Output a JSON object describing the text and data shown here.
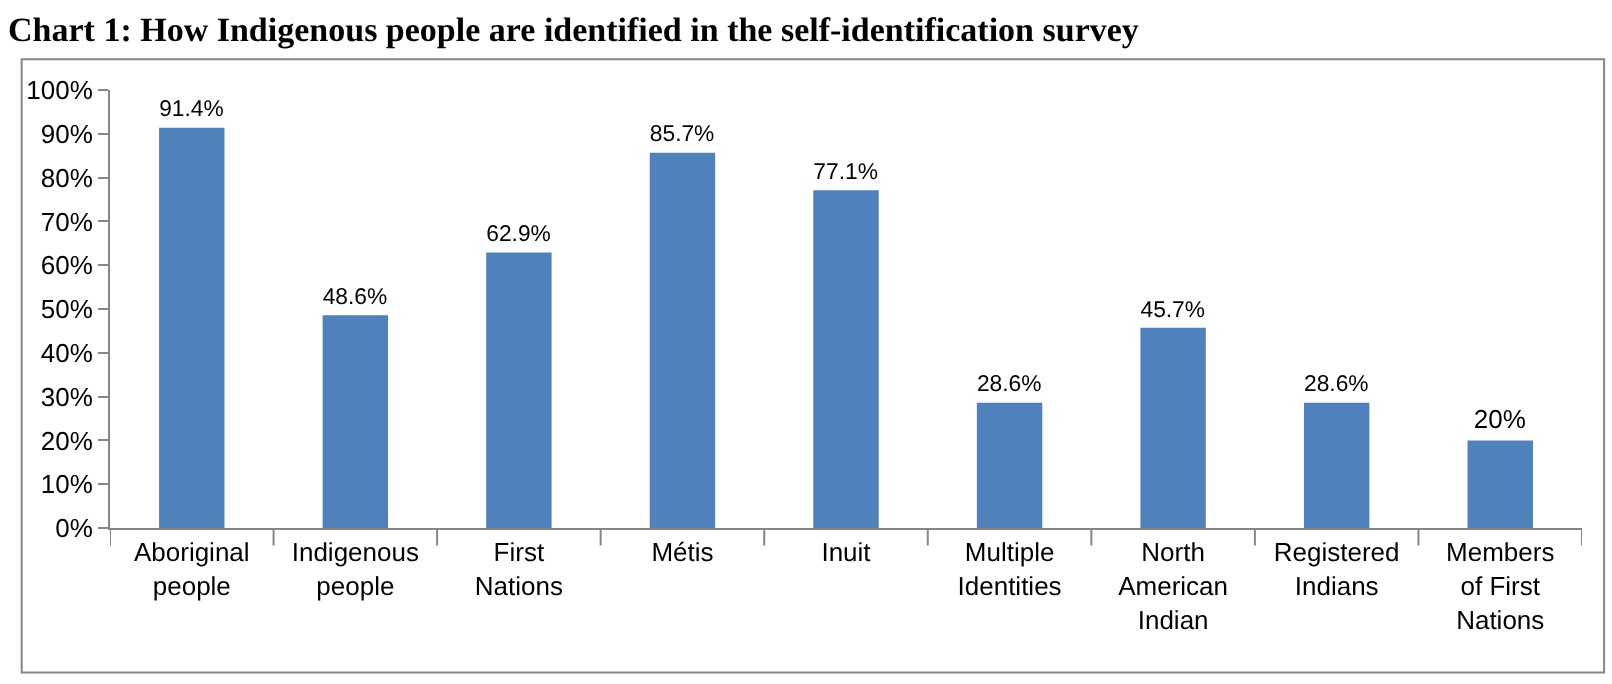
{
  "chart_data": {
    "type": "bar",
    "title": "Chart 1: How Indigenous people are identified in the self-identification survey",
    "categories": [
      "Aboriginal\npeople",
      "Indigenous\npeople",
      "First\nNations",
      "Métis",
      "Inuit",
      "Multiple\nIdentities",
      "North\nAmerican\nIndian",
      "Registered\nIndians",
      "Members\nof First\nNations"
    ],
    "values": [
      91.4,
      48.6,
      62.9,
      85.7,
      77.1,
      28.6,
      45.7,
      28.6,
      20
    ],
    "value_labels": [
      "91.4%",
      "48.6%",
      "62.9%",
      "85.7%",
      "77.1%",
      "28.6%",
      "45.7%",
      "28.6%",
      "20%"
    ],
    "color": "#4f81bd",
    "ylim": [
      0,
      100
    ],
    "yticks": [
      {
        "value": 0,
        "label": "0%"
      },
      {
        "value": 10,
        "label": "10%"
      },
      {
        "value": 20,
        "label": "20%"
      },
      {
        "value": 30,
        "label": "30%"
      },
      {
        "value": 40,
        "label": "40%"
      },
      {
        "value": 50,
        "label": "50%"
      },
      {
        "value": 60,
        "label": "60%"
      },
      {
        "value": 70,
        "label": "70%"
      },
      {
        "value": 80,
        "label": "80%"
      },
      {
        "value": 90,
        "label": "90%"
      },
      {
        "value": 100,
        "label": "100%"
      }
    ],
    "line_style": "solid"
  }
}
